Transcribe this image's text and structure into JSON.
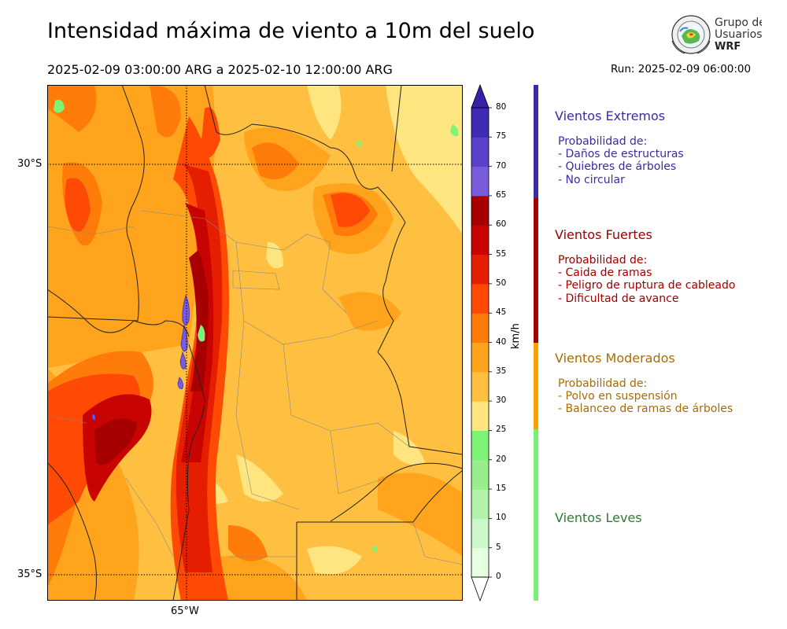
{
  "header": {
    "title": "Intensidad máxima de viento a 10m del suelo",
    "period": "2025-02-09 03:00:00 ARG  a  2025-02-10 12:00:00 ARG",
    "run": "Run: 2025-02-09 06:00:00"
  },
  "logo": {
    "line1": "Grupo de",
    "line2": "Usuarios",
    "line3": "WRF"
  },
  "map": {
    "lat_labels": [
      "30°S",
      "35°S"
    ],
    "lon_labels": [
      "65°W"
    ],
    "gridlines": true
  },
  "colorbar": {
    "unit": "km/h",
    "ticks": [
      "80",
      "75",
      "70",
      "65",
      "60",
      "55",
      "50",
      "45",
      "40",
      "35",
      "30",
      "25",
      "20",
      "15",
      "10",
      "5",
      "0"
    ],
    "colors": [
      "#ffffff",
      "#e5ffe0",
      "#ccf7c8",
      "#b3f2aa",
      "#98ee8c",
      "#7ef477",
      "#ffe57f",
      "#ffc042",
      "#ffa41c",
      "#ff7c0a",
      "#ff4a05",
      "#e51e02",
      "#c70402",
      "#a70000",
      "#785cdc",
      "#5b40cc",
      "#3f2cb4",
      "#3820aa"
    ]
  },
  "categories": [
    {
      "id": "extremos",
      "color": "#3a2aaa",
      "title": "Vientos Extremos",
      "lines": [
        "Probabilidad de:",
        "- Daños de estructuras",
        "- Quiebres de árboles",
        "- No circular"
      ]
    },
    {
      "id": "fuertes",
      "color": "#a00000",
      "title": "Vientos Fuertes",
      "lines": [
        "Probabilidad de:",
        "- Caida de ramas",
        "- Peligro de ruptura de cableado",
        "- Dificultad de avance"
      ]
    },
    {
      "id": "moderados",
      "color": "#a86c00",
      "bar_color": "#ffa000",
      "title": "Vientos Moderados",
      "lines": [
        "Probabilidad de:",
        "- Polvo en suspensión",
        "- Balanceo de ramas de árboles"
      ]
    },
    {
      "id": "leves",
      "color": "#2e7d32",
      "bar_color": "#78f078",
      "title": "Vientos Leves",
      "lines": []
    }
  ]
}
